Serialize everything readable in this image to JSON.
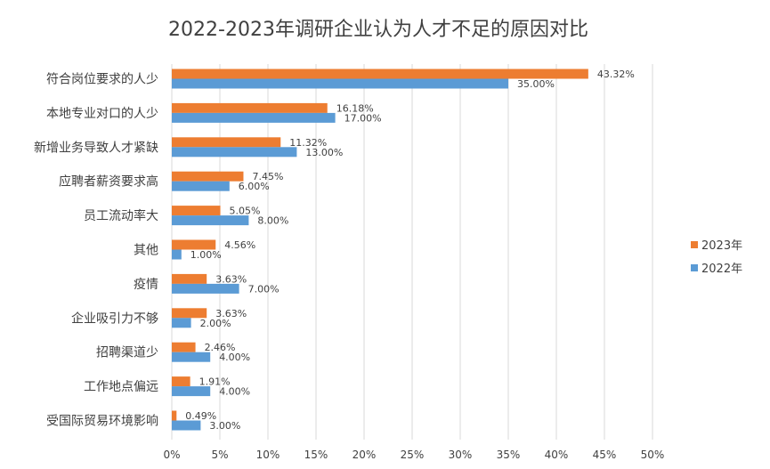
{
  "chart_data": {
    "type": "bar",
    "orientation": "horizontal",
    "title": "2022-2023年调研企业认为人才不足的原因对比",
    "categories": [
      "符合岗位要求的人少",
      "本地专业对口的人少",
      "新增业务导致人才紧缺",
      "应聘者薪资要求高",
      "员工流动率大",
      "其他",
      "疫情",
      "企业吸引力不够",
      "招聘渠道少",
      "工作地点偏远",
      "受国际贸易环境影响"
    ],
    "series": [
      {
        "name": "2023年",
        "color": "#ED7D31",
        "values": [
          43.32,
          16.18,
          11.32,
          7.45,
          5.05,
          4.56,
          3.63,
          3.63,
          2.46,
          1.91,
          0.49
        ],
        "labels": [
          "43.32%",
          "16.18%",
          "11.32%",
          "7.45%",
          "5.05%",
          "4.56%",
          "3.63%",
          "3.63%",
          "2.46%",
          "1.91%",
          "0.49%"
        ]
      },
      {
        "name": "2022年",
        "color": "#5B9BD5",
        "values": [
          35.0,
          17.0,
          13.0,
          6.0,
          8.0,
          1.0,
          7.0,
          2.0,
          4.0,
          4.0,
          3.0
        ],
        "labels": [
          "35.00%",
          "17.00%",
          "13.00%",
          "6.00%",
          "8.00%",
          "1.00%",
          "7.00%",
          "2.00%",
          "4.00%",
          "4.00%",
          "3.00%"
        ]
      }
    ],
    "xlim": [
      0,
      50
    ],
    "xticks": [
      0,
      5,
      10,
      15,
      20,
      25,
      30,
      35,
      40,
      45,
      50
    ],
    "xtick_labels": [
      "0%",
      "5%",
      "10%",
      "15%",
      "20%",
      "25%",
      "30%",
      "35%",
      "40%",
      "45%",
      "50%"
    ],
    "xlabel": "",
    "ylabel": "",
    "grid": "vertical",
    "legend_position": "right"
  }
}
